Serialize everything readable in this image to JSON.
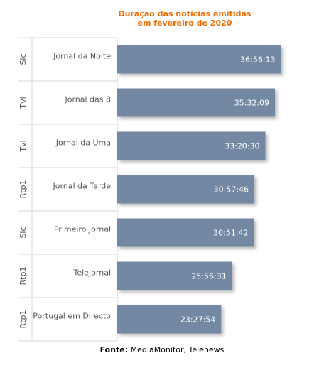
{
  "chart_data": {
    "type": "bar",
    "orientation": "horizontal",
    "title": [
      "Duração das notícias emitidas",
      "em fevereiro de 2020"
    ],
    "groups": [
      "Sic",
      "Tvi",
      "Tvi",
      "Rtp1",
      "Sic",
      "Rtp1",
      "Rtp1"
    ],
    "categories": [
      "Jornal da Noite",
      "Jornal das 8",
      "Jornal da Uma",
      "Jornal da Tarde",
      "Primeiro Jornal",
      "TeleJornal",
      "Portugal em Directo"
    ],
    "values": [
      133,
      128.1,
      120.3,
      111.4,
      111.1,
      93.3,
      84.4
    ],
    "data_labels": [
      "36:56:13",
      "35:32:09",
      "33:20:30",
      "30:57:46",
      "30:51:42",
      "25:56:31",
      "23:27:54"
    ],
    "value_units": "relative bar length, values correspond to durations (hh:mm:ss)",
    "xlim": [
      0,
      150
    ],
    "bar_color": "#7388a3",
    "title_color": "#f26d00",
    "gridlines": false,
    "legend": "none"
  },
  "source": {
    "label": "Fonte:",
    "text": "MediaMonitor, Telenews"
  }
}
